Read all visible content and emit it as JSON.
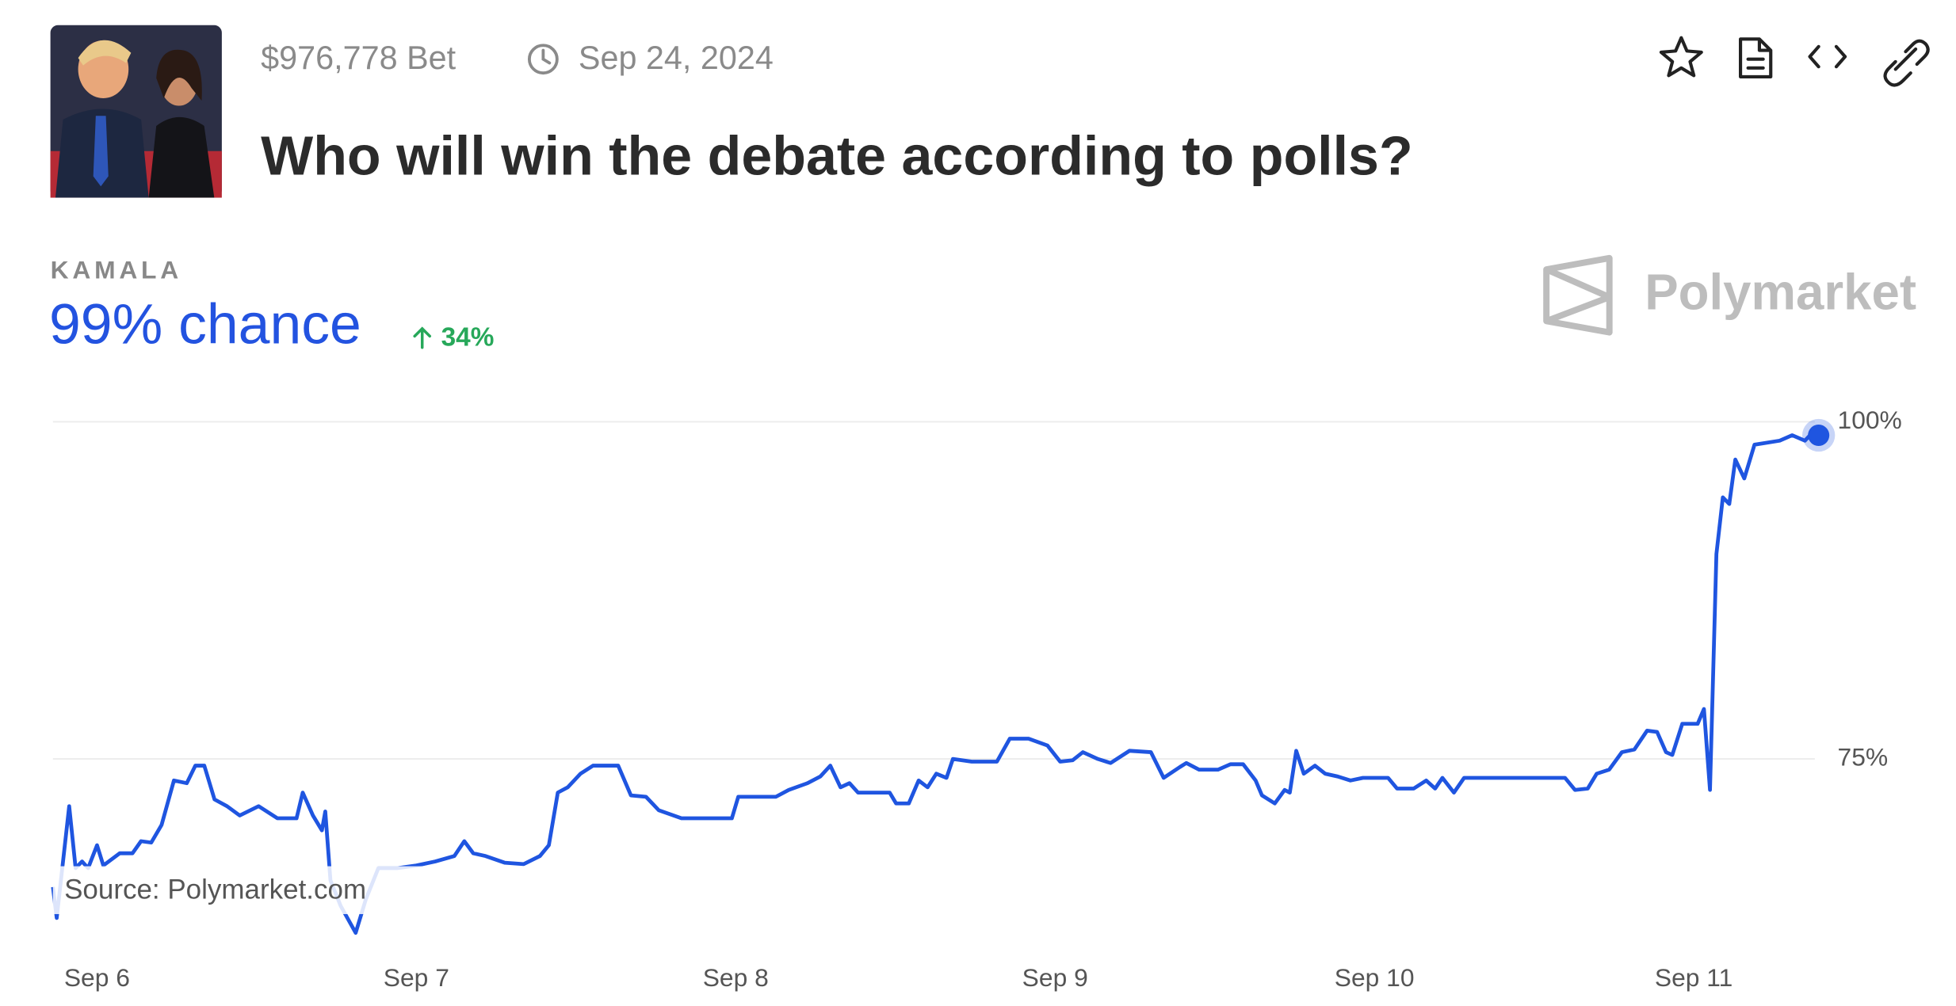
{
  "chart_data": {
    "type": "line",
    "volume": "$976,778 Bet",
    "date": "Sep 24, 2024",
    "title": "Who will win the debate according to polls?",
    "outcome": "KAMALA",
    "headline": "99% chance",
    "change": "34%",
    "brand": "Polymarket",
    "source": "Source: Polymarket.com",
    "color": "#1f55e0",
    "grid": true,
    "xlim": [
      -0.138,
      5.391
    ],
    "xticks": [
      {
        "value": 0,
        "label": "Sep 6"
      },
      {
        "value": 1,
        "label": "Sep 7"
      },
      {
        "value": 2,
        "label": "Sep 8"
      },
      {
        "value": 3,
        "label": "Sep 9"
      },
      {
        "value": 4,
        "label": "Sep 10"
      },
      {
        "value": 5,
        "label": "Sep 11"
      }
    ],
    "ylim": [
      62,
      100
    ],
    "yticks": [
      {
        "value": 75,
        "label": "75%"
      },
      {
        "value": 100,
        "label": "100%"
      }
    ],
    "x": [
      -0.138,
      -0.126,
      -0.087,
      -0.067,
      -0.047,
      -0.028,
      0,
      0.02,
      0.071,
      0.111,
      0.138,
      0.17,
      0.202,
      0.241,
      0.281,
      0.308,
      0.336,
      0.368,
      0.407,
      0.447,
      0.506,
      0.565,
      0.625,
      0.644,
      0.676,
      0.704,
      0.715,
      0.731,
      0.763,
      0.81,
      0.842,
      0.881,
      0.941,
      1.0,
      1.059,
      1.119,
      1.15,
      1.178,
      1.217,
      1.277,
      1.336,
      1.387,
      1.415,
      1.443,
      1.474,
      1.514,
      1.553,
      1.632,
      1.672,
      1.719,
      1.759,
      1.83,
      1.988,
      2.008,
      2.126,
      2.166,
      2.225,
      2.265,
      2.296,
      2.328,
      2.356,
      2.383,
      2.482,
      2.502,
      2.542,
      2.573,
      2.601,
      2.628,
      2.66,
      2.68,
      2.739,
      2.818,
      2.858,
      2.917,
      2.976,
      3.016,
      3.055,
      3.087,
      3.134,
      3.174,
      3.233,
      3.3,
      3.34,
      3.391,
      3.411,
      3.451,
      3.51,
      3.549,
      3.589,
      3.628,
      3.648,
      3.688,
      3.719,
      3.735,
      3.755,
      3.779,
      3.814,
      3.846,
      3.885,
      3.925,
      3.964,
      4.043,
      4.071,
      4.123,
      4.162,
      4.19,
      4.213,
      4.249,
      4.281,
      4.597,
      4.628,
      4.668,
      4.696,
      4.735,
      4.775,
      4.814,
      4.854,
      4.885,
      4.913,
      4.933,
      4.964,
      5.012,
      5.032,
      5.051,
      5.071,
      5.091,
      5.111,
      5.13,
      5.158,
      5.19,
      5.269,
      5.308,
      5.348,
      5.368,
      5.391
    ],
    "values": [
      65.5,
      63.2,
      71.5,
      66.9,
      67.4,
      66.9,
      68.6,
      67.1,
      68.0,
      68.0,
      68.9,
      68.8,
      70.1,
      73.4,
      73.2,
      74.5,
      74.5,
      72.0,
      71.5,
      70.8,
      71.5,
      70.6,
      70.6,
      72.5,
      70.8,
      69.7,
      71.1,
      66.0,
      64.1,
      62.1,
      64.6,
      66.9,
      66.9,
      67.1,
      67.4,
      67.8,
      68.9,
      68.0,
      67.8,
      67.3,
      67.2,
      67.8,
      68.6,
      72.5,
      72.9,
      73.9,
      74.5,
      74.5,
      72.3,
      72.2,
      71.2,
      70.6,
      70.6,
      72.2,
      72.2,
      72.7,
      73.2,
      73.7,
      74.5,
      72.9,
      73.2,
      72.5,
      72.5,
      71.7,
      71.7,
      73.4,
      72.9,
      73.9,
      73.6,
      75.0,
      74.8,
      74.8,
      76.5,
      76.5,
      76.0,
      74.8,
      74.9,
      75.5,
      75.0,
      74.7,
      75.6,
      75.5,
      73.6,
      74.4,
      74.7,
      74.2,
      74.2,
      74.6,
      74.6,
      73.4,
      72.3,
      71.7,
      72.7,
      72.5,
      75.6,
      73.9,
      74.5,
      73.9,
      73.7,
      73.4,
      73.6,
      73.6,
      72.8,
      72.8,
      73.4,
      72.8,
      73.6,
      72.5,
      73.6,
      73.6,
      72.7,
      72.8,
      73.9,
      74.2,
      75.5,
      75.7,
      77.1,
      77.0,
      75.5,
      75.3,
      77.6,
      77.6,
      78.7,
      72.7,
      90.2,
      94.4,
      93.9,
      97.2,
      95.8,
      98.3,
      98.6,
      99.0,
      98.6,
      99.1,
      99.0
    ]
  }
}
